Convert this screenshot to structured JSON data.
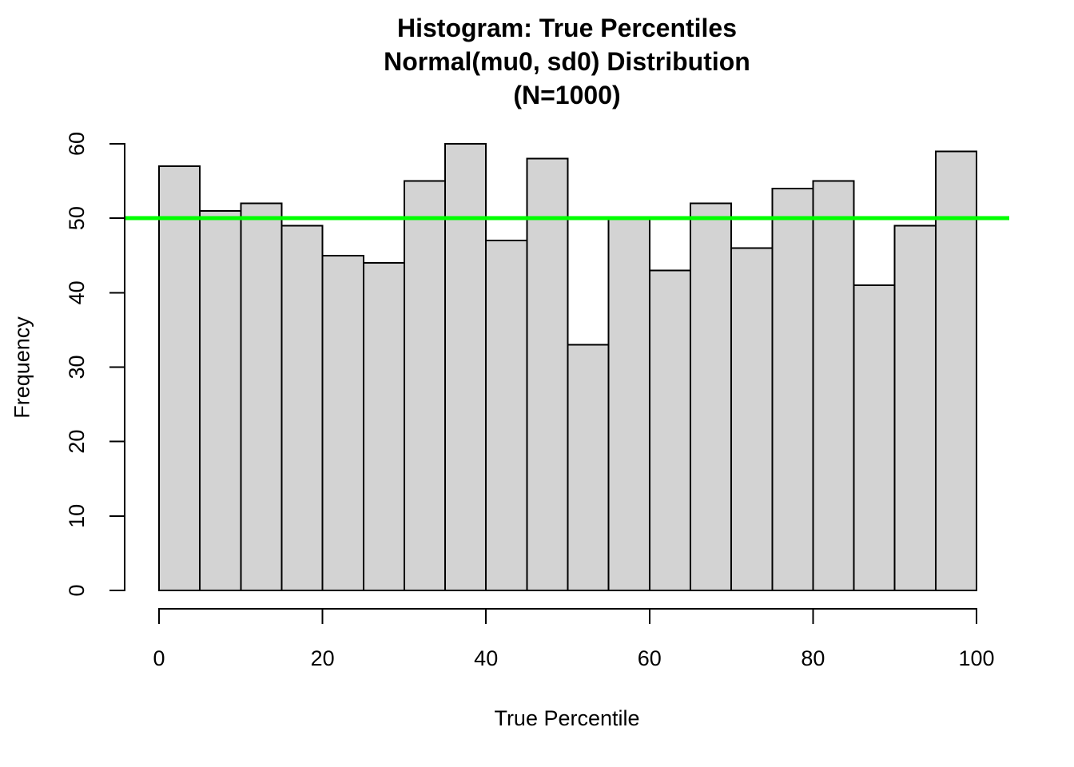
{
  "chart": {
    "title_lines": [
      "Histogram: True Percentiles",
      "Normal(mu0, sd0) Distribution",
      "(N=1000)"
    ],
    "xlabel": "True Percentile",
    "ylabel": "Frequency"
  },
  "chart_data": {
    "type": "bar",
    "subtype": "histogram",
    "title": "Histogram: True Percentiles",
    "subtitle": "Normal(mu0, sd0) Distribution",
    "sample_size_label": "(N=1000)",
    "n": 1000,
    "xlabel": "True Percentile",
    "ylabel": "Frequency",
    "bin_width": 5,
    "bin_edges": [
      0,
      5,
      10,
      15,
      20,
      25,
      30,
      35,
      40,
      45,
      50,
      55,
      60,
      65,
      70,
      75,
      80,
      85,
      90,
      95,
      100
    ],
    "values": [
      57,
      51,
      52,
      49,
      45,
      44,
      55,
      60,
      47,
      58,
      33,
      50,
      43,
      52,
      46,
      54,
      55,
      41,
      49,
      59
    ],
    "xlim": [
      0,
      100
    ],
    "ylim": [
      0,
      60
    ],
    "x_ticks": [
      0,
      20,
      40,
      60,
      80,
      100
    ],
    "y_ticks": [
      0,
      10,
      20,
      30,
      40,
      50,
      60
    ],
    "grid": false,
    "legend": "none",
    "reference_line": {
      "y": 50,
      "color": "#00ff00",
      "width": 5
    },
    "bar_fill": "#d3d3d3",
    "bar_border": "#000000",
    "axis_color": "#000000",
    "text_color": "#000000"
  }
}
